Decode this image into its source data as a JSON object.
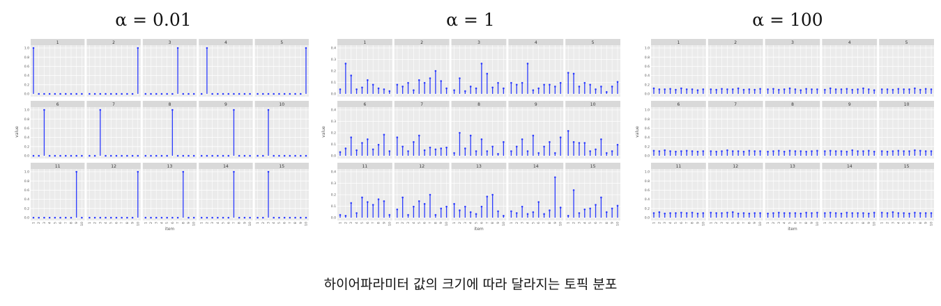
{
  "caption": "하이어파라미터 값의 크기에 따라 달라지는 토픽 분포",
  "chart_data": [
    {
      "type": "lollipop-facet",
      "title": "α = 0.01",
      "xlabel": "item",
      "ylabel": "value",
      "ylim": [
        0,
        1.0
      ],
      "yticks": [
        "0.0",
        "0.2",
        "0.4",
        "0.6",
        "0.8",
        "1.0"
      ],
      "xticks": [
        "1",
        "2",
        "3",
        "4",
        "5",
        "6",
        "7",
        "8",
        "9",
        "10"
      ],
      "facets": [
        {
          "label": "1",
          "values": [
            1,
            0,
            0,
            0,
            0,
            0,
            0,
            0,
            0,
            0
          ]
        },
        {
          "label": "2",
          "values": [
            0,
            0,
            0,
            0,
            0,
            0,
            0,
            0,
            0,
            1
          ]
        },
        {
          "label": "3",
          "values": [
            0,
            0,
            0,
            0,
            0,
            0,
            1,
            0,
            0,
            0
          ]
        },
        {
          "label": "4",
          "values": [
            0,
            1,
            0,
            0,
            0,
            0,
            0,
            0,
            0,
            0
          ]
        },
        {
          "label": "5",
          "values": [
            0,
            0,
            0,
            0,
            0,
            0,
            0,
            0,
            0,
            1
          ]
        },
        {
          "label": "6",
          "values": [
            0,
            0,
            1,
            0,
            0,
            0,
            0,
            0,
            0,
            0
          ]
        },
        {
          "label": "7",
          "values": [
            0,
            0,
            1,
            0,
            0,
            0,
            0,
            0,
            0,
            0
          ]
        },
        {
          "label": "8",
          "values": [
            0,
            0,
            0,
            0,
            0,
            1,
            0,
            0,
            0,
            0
          ]
        },
        {
          "label": "9",
          "values": [
            0,
            0,
            0,
            0,
            0,
            0,
            1,
            0,
            0,
            0
          ]
        },
        {
          "label": "10",
          "values": [
            0,
            0,
            1,
            0,
            0,
            0,
            0,
            0,
            0,
            0
          ]
        },
        {
          "label": "11",
          "values": [
            0,
            0,
            0,
            0,
            0,
            0,
            0,
            0,
            1,
            0
          ]
        },
        {
          "label": "12",
          "values": [
            0,
            0,
            0,
            0,
            0,
            0,
            0,
            0,
            0,
            1
          ]
        },
        {
          "label": "13",
          "values": [
            0,
            0,
            0,
            0,
            0,
            0,
            0,
            1,
            0,
            0
          ]
        },
        {
          "label": "14",
          "values": [
            0,
            0,
            0,
            0,
            0,
            0,
            1,
            0,
            0,
            0
          ]
        },
        {
          "label": "15",
          "values": [
            0,
            0,
            1,
            0,
            0,
            0,
            0,
            0,
            0,
            0
          ]
        }
      ]
    },
    {
      "type": "lollipop-facet",
      "title": "α = 1",
      "xlabel": "item",
      "ylabel": "value",
      "ylim": [
        0,
        0.5
      ],
      "yticks": [
        "0.0",
        "0.1",
        "0.2",
        "0.3",
        "0.4"
      ],
      "xticks": [
        "1",
        "2",
        "3",
        "4",
        "5",
        "6",
        "7",
        "8",
        "9",
        "10"
      ],
      "facets": [
        {
          "label": "1",
          "values": [
            0.05,
            0.33,
            0.2,
            0.05,
            0.07,
            0.15,
            0.1,
            0.06,
            0.05,
            0.03
          ]
        },
        {
          "label": "2",
          "values": [
            0.1,
            0.08,
            0.12,
            0.04,
            0.15,
            0.12,
            0.17,
            0.25,
            0.14,
            0.06
          ]
        },
        {
          "label": "3",
          "values": [
            0.04,
            0.17,
            0.03,
            0.08,
            0.06,
            0.33,
            0.22,
            0.07,
            0.12,
            0.06
          ]
        },
        {
          "label": "4",
          "values": [
            0.12,
            0.1,
            0.12,
            0.33,
            0.04,
            0.06,
            0.1,
            0.1,
            0.08,
            0.12
          ]
        },
        {
          "label": "5",
          "values": [
            0.23,
            0.22,
            0.08,
            0.12,
            0.1,
            0.05,
            0.08,
            0.02,
            0.08,
            0.13
          ]
        },
        {
          "label": "6",
          "values": [
            0.04,
            0.08,
            0.2,
            0.06,
            0.14,
            0.18,
            0.07,
            0.12,
            0.23,
            0.05
          ]
        },
        {
          "label": "7",
          "values": [
            0.2,
            0.1,
            0.05,
            0.15,
            0.22,
            0.06,
            0.09,
            0.07,
            0.08,
            0.09
          ]
        },
        {
          "label": "8",
          "values": [
            0.03,
            0.25,
            0.08,
            0.22,
            0.05,
            0.18,
            0.05,
            0.1,
            0.02,
            0.15
          ]
        },
        {
          "label": "9",
          "values": [
            0.05,
            0.1,
            0.18,
            0.05,
            0.22,
            0.03,
            0.1,
            0.15,
            0.03,
            0.2
          ]
        },
        {
          "label": "10",
          "values": [
            0.27,
            0.15,
            0.14,
            0.14,
            0.05,
            0.07,
            0.18,
            0.03,
            0.05,
            0.12
          ]
        },
        {
          "label": "11",
          "values": [
            0.03,
            0.02,
            0.16,
            0.05,
            0.22,
            0.17,
            0.14,
            0.2,
            0.18,
            0.03
          ]
        },
        {
          "label": "12",
          "values": [
            0.09,
            0.22,
            0.03,
            0.12,
            0.18,
            0.15,
            0.25,
            0.03,
            0.1,
            0.12
          ]
        },
        {
          "label": "13",
          "values": [
            0.15,
            0.08,
            0.12,
            0.06,
            0.04,
            0.12,
            0.23,
            0.25,
            0.07,
            0.02
          ]
        },
        {
          "label": "14",
          "values": [
            0.07,
            0.05,
            0.12,
            0.04,
            0.06,
            0.17,
            0.04,
            0.08,
            0.44,
            0.11
          ]
        },
        {
          "label": "15",
          "values": [
            0.02,
            0.3,
            0.05,
            0.09,
            0.1,
            0.14,
            0.22,
            0.06,
            0.1,
            0.13
          ]
        }
      ]
    },
    {
      "type": "lollipop-facet",
      "title": "α = 100",
      "xlabel": "item",
      "ylabel": "value",
      "ylim": [
        0,
        1.0
      ],
      "yticks": [
        "0.0",
        "0.2",
        "0.4",
        "0.6",
        "0.8",
        "1.0"
      ],
      "xticks": [
        "1",
        "2",
        "3",
        "4",
        "5",
        "6",
        "7",
        "8",
        "9",
        "10"
      ],
      "facets": [
        {
          "label": "1",
          "values": [
            0.12,
            0.1,
            0.1,
            0.11,
            0.09,
            0.12,
            0.1,
            0.1,
            0.08,
            0.1
          ]
        },
        {
          "label": "2",
          "values": [
            0.1,
            0.09,
            0.11,
            0.1,
            0.1,
            0.12,
            0.09,
            0.1,
            0.09,
            0.11
          ]
        },
        {
          "label": "3",
          "values": [
            0.1,
            0.11,
            0.09,
            0.1,
            0.12,
            0.1,
            0.08,
            0.11,
            0.1,
            0.1
          ]
        },
        {
          "label": "4",
          "values": [
            0.09,
            0.12,
            0.1,
            0.1,
            0.11,
            0.09,
            0.1,
            0.12,
            0.1,
            0.08
          ]
        },
        {
          "label": "5",
          "values": [
            0.1,
            0.1,
            0.09,
            0.11,
            0.1,
            0.1,
            0.12,
            0.09,
            0.11,
            0.1
          ]
        },
        {
          "label": "6",
          "values": [
            0.11,
            0.1,
            0.12,
            0.1,
            0.09,
            0.1,
            0.11,
            0.1,
            0.09,
            0.1
          ]
        },
        {
          "label": "7",
          "values": [
            0.1,
            0.09,
            0.1,
            0.12,
            0.1,
            0.1,
            0.09,
            0.11,
            0.1,
            0.1
          ]
        },
        {
          "label": "8",
          "values": [
            0.09,
            0.1,
            0.11,
            0.09,
            0.11,
            0.1,
            0.1,
            0.09,
            0.1,
            0.11
          ]
        },
        {
          "label": "9",
          "values": [
            0.1,
            0.11,
            0.1,
            0.1,
            0.09,
            0.12,
            0.1,
            0.1,
            0.11,
            0.09
          ]
        },
        {
          "label": "10",
          "values": [
            0.1,
            0.09,
            0.1,
            0.11,
            0.1,
            0.1,
            0.12,
            0.11,
            0.1,
            0.1
          ]
        },
        {
          "label": "11",
          "values": [
            0.1,
            0.12,
            0.09,
            0.1,
            0.1,
            0.11,
            0.1,
            0.11,
            0.09,
            0.1
          ]
        },
        {
          "label": "12",
          "values": [
            0.11,
            0.1,
            0.1,
            0.11,
            0.12,
            0.09,
            0.1,
            0.09,
            0.1,
            0.1
          ]
        },
        {
          "label": "13",
          "values": [
            0.09,
            0.1,
            0.11,
            0.1,
            0.1,
            0.1,
            0.09,
            0.11,
            0.1,
            0.11
          ]
        },
        {
          "label": "14",
          "values": [
            0.1,
            0.11,
            0.1,
            0.09,
            0.11,
            0.1,
            0.1,
            0.1,
            0.09,
            0.11
          ]
        },
        {
          "label": "15",
          "values": [
            0.11,
            0.1,
            0.12,
            0.1,
            0.1,
            0.09,
            0.11,
            0.1,
            0.1,
            0.1
          ]
        }
      ]
    }
  ],
  "style": {
    "stem_color": "#2b3bff",
    "panel_bg": "#ebebeb",
    "strip_bg": "#d9d9d9",
    "grid_color": "#ffffff",
    "axis_text_color": "#555555"
  }
}
